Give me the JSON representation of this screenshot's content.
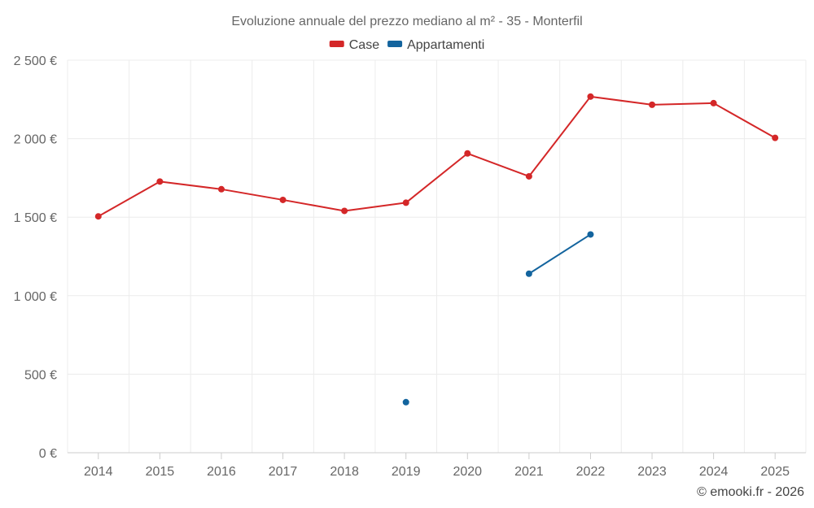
{
  "chart_data": {
    "type": "line",
    "title": "Evoluzione annuale del prezzo mediano al m² - 35 - Monterfil",
    "categories": [
      "2014",
      "2015",
      "2016",
      "2017",
      "2018",
      "2019",
      "2020",
      "2021",
      "2022",
      "2023",
      "2024",
      "2025"
    ],
    "y_ticks": [
      {
        "value": 0,
        "label": "0 €"
      },
      {
        "value": 500,
        "label": "500 €"
      },
      {
        "value": 1000,
        "label": "1 000 €"
      },
      {
        "value": 1500,
        "label": "1 500 €"
      },
      {
        "value": 2000,
        "label": "2 000 €"
      },
      {
        "value": 2500,
        "label": "2 500 €"
      }
    ],
    "ylim": [
      0,
      2500
    ],
    "grid": true,
    "legend_position": "top-center",
    "series": [
      {
        "name": "Case",
        "color": "#d42728",
        "values": [
          1505,
          1727,
          1678,
          1610,
          1540,
          1592,
          1906,
          1760,
          2268,
          2216,
          2226,
          2005
        ]
      },
      {
        "name": "Appartamenti",
        "color": "#13649e",
        "values": [
          null,
          null,
          null,
          null,
          null,
          322,
          null,
          1140,
          1390,
          null,
          null,
          null
        ]
      }
    ],
    "credit": "© emooki.fr - 2026"
  }
}
